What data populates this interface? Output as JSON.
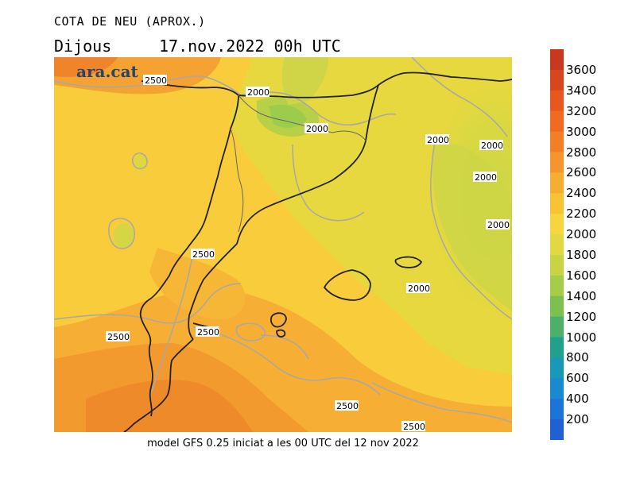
{
  "header": {
    "title": "COTA DE NEU (APROX.)",
    "day": "Dijous",
    "datetime": "17.nov.2022 00h UTC"
  },
  "logo": {
    "text": "ara.cat"
  },
  "footer": {
    "text": "model GFS 0.25 iniciat a les 00 UTC del 12 nov 2022"
  },
  "legend": {
    "ticks": [
      "3600",
      "3400",
      "3200",
      "3000",
      "2800",
      "2600",
      "2400",
      "2200",
      "2000",
      "1800",
      "1600",
      "1400",
      "1200",
      "1000",
      "800",
      "600",
      "400",
      "200"
    ],
    "colors": [
      "#c8381e",
      "#d8461e",
      "#e8581e",
      "#f06a22",
      "#f27e28",
      "#f4962c",
      "#f6ae32",
      "#f8c436",
      "#f6d63c",
      "#e2d840",
      "#c8d444",
      "#a6cc48",
      "#7cc050",
      "#4cb06a",
      "#22a08e",
      "#1a98b8",
      "#1a8ad0",
      "#1c74d6",
      "#2060d2"
    ]
  },
  "isolines": [
    {
      "label": "2500"
    },
    {
      "label": "2000"
    },
    {
      "label": "2000"
    },
    {
      "label": "2000"
    },
    {
      "label": "2000"
    },
    {
      "label": "2000"
    },
    {
      "label": "2000"
    },
    {
      "label": "2000"
    },
    {
      "label": "2500"
    },
    {
      "label": "2500"
    },
    {
      "label": "2500"
    },
    {
      "label": "2500"
    },
    {
      "label": "2500"
    }
  ]
}
